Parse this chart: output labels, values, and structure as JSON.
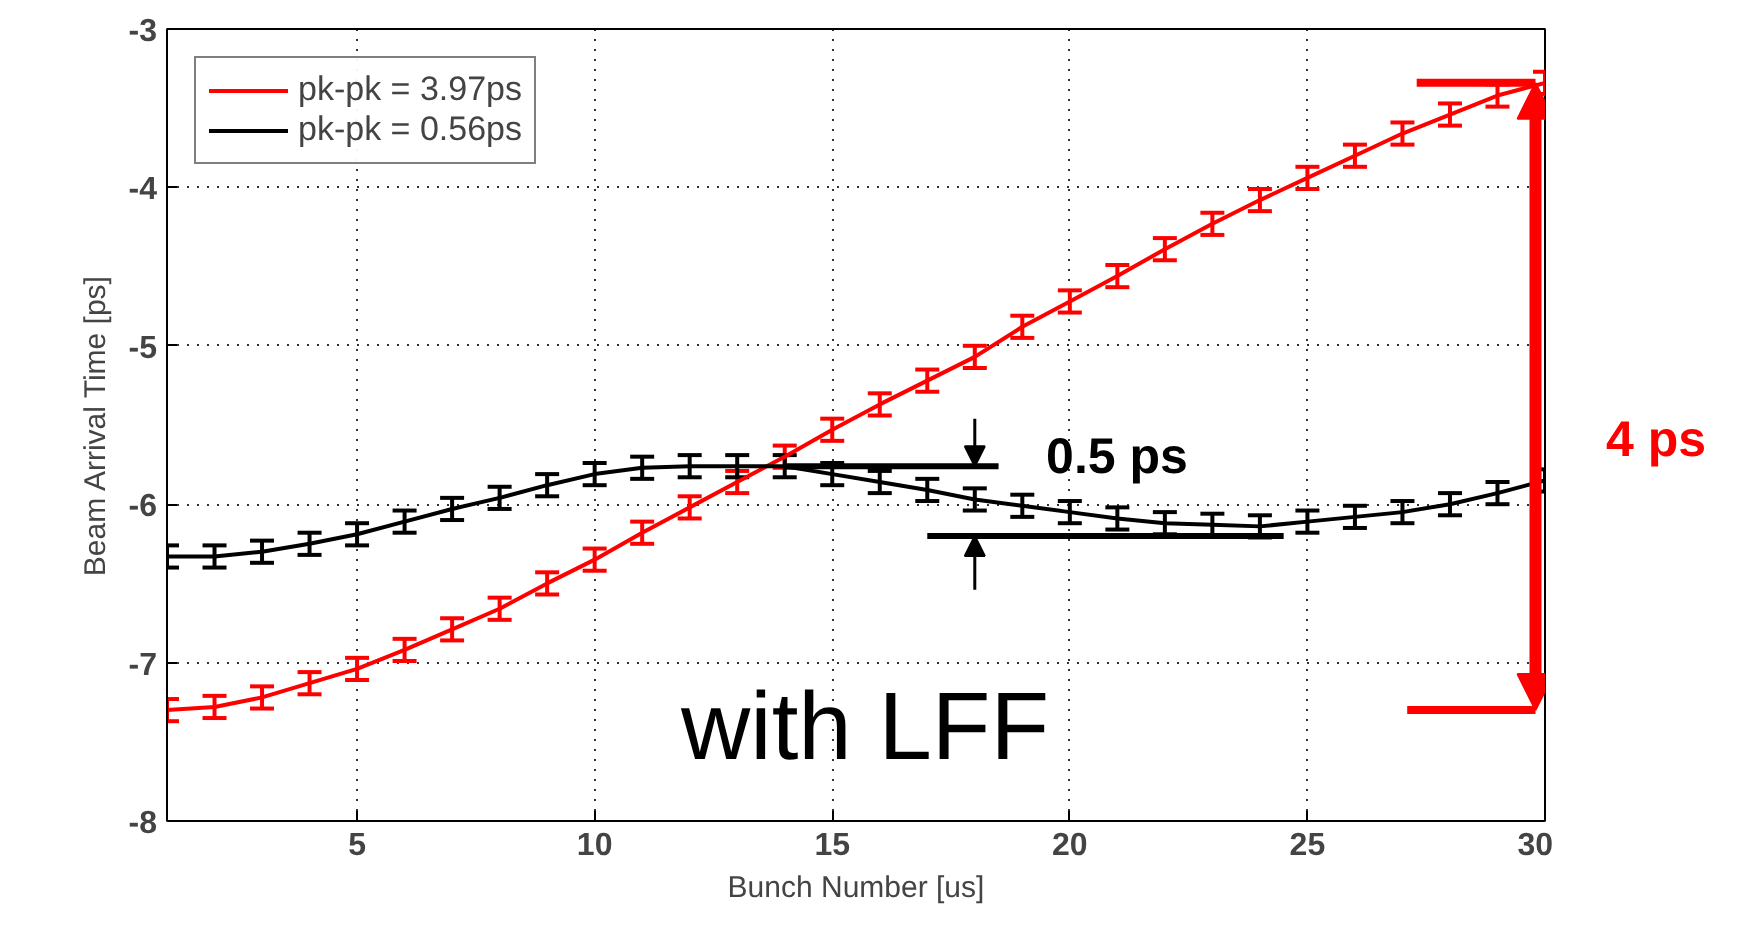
{
  "chart_data": {
    "type": "line",
    "xlabel": "Bunch Number [us]",
    "ylabel": "Beam Arrival Time [ps]",
    "x": [
      1,
      2,
      3,
      4,
      5,
      6,
      7,
      8,
      9,
      10,
      11,
      12,
      13,
      14,
      15,
      16,
      17,
      18,
      19,
      20,
      21,
      22,
      23,
      24,
      25,
      26,
      27,
      28,
      29,
      30
    ],
    "series": [
      {
        "name": "pk-pk = 3.97ps",
        "color": "#ff0000",
        "errors": [
          0.07,
          0.07,
          0.07,
          0.07,
          0.07,
          0.07,
          0.07,
          0.07,
          0.07,
          0.07,
          0.07,
          0.07,
          0.07,
          0.07,
          0.07,
          0.07,
          0.07,
          0.07,
          0.07,
          0.07,
          0.07,
          0.07,
          0.07,
          0.07,
          0.07,
          0.07,
          0.07,
          0.07,
          0.07,
          0.07
        ],
        "values": [
          -7.3,
          -7.28,
          -7.22,
          -7.13,
          -7.04,
          -6.92,
          -6.79,
          -6.66,
          -6.5,
          -6.35,
          -6.18,
          -6.02,
          -5.86,
          -5.7,
          -5.53,
          -5.37,
          -5.22,
          -5.07,
          -4.88,
          -4.72,
          -4.56,
          -4.39,
          -4.23,
          -4.08,
          -3.94,
          -3.8,
          -3.66,
          -3.54,
          -3.42,
          -3.34
        ]
      },
      {
        "name": "pk-pk = 0.56ps",
        "color": "#000000",
        "errors": [
          0.07,
          0.07,
          0.07,
          0.07,
          0.07,
          0.07,
          0.07,
          0.07,
          0.07,
          0.07,
          0.07,
          0.07,
          0.07,
          0.07,
          0.07,
          0.07,
          0.07,
          0.07,
          0.07,
          0.07,
          0.07,
          0.07,
          0.07,
          0.07,
          0.07,
          0.07,
          0.07,
          0.07,
          0.07,
          0.07
        ],
        "values": [
          -6.33,
          -6.33,
          -6.3,
          -6.25,
          -6.19,
          -6.11,
          -6.03,
          -5.96,
          -5.88,
          -5.81,
          -5.77,
          -5.76,
          -5.76,
          -5.76,
          -5.81,
          -5.86,
          -5.91,
          -5.97,
          -6.01,
          -6.05,
          -6.09,
          -6.12,
          -6.13,
          -6.14,
          -6.11,
          -6.08,
          -6.05,
          -6.0,
          -5.93,
          -5.85
        ]
      }
    ],
    "xlim": [
      1,
      30
    ],
    "ylim": [
      -8,
      -3
    ],
    "xticks": [
      5,
      10,
      15,
      20,
      25,
      30
    ],
    "yticks": [
      -8,
      -7,
      -6,
      -5,
      -4,
      -3
    ],
    "ref_lines": [
      {
        "axis": "y",
        "value": -5.76,
        "color": "#000000"
      },
      {
        "axis": "y",
        "value": -6.2,
        "color": "#000000"
      }
    ],
    "grid": true,
    "legend": "top left",
    "marker": "none",
    "line_style": "solid",
    "annotations": [
      {
        "text": "0.5 ps",
        "x": 18,
        "y": -5.95
      },
      "4 ps",
      "with LFF"
    ]
  }
}
